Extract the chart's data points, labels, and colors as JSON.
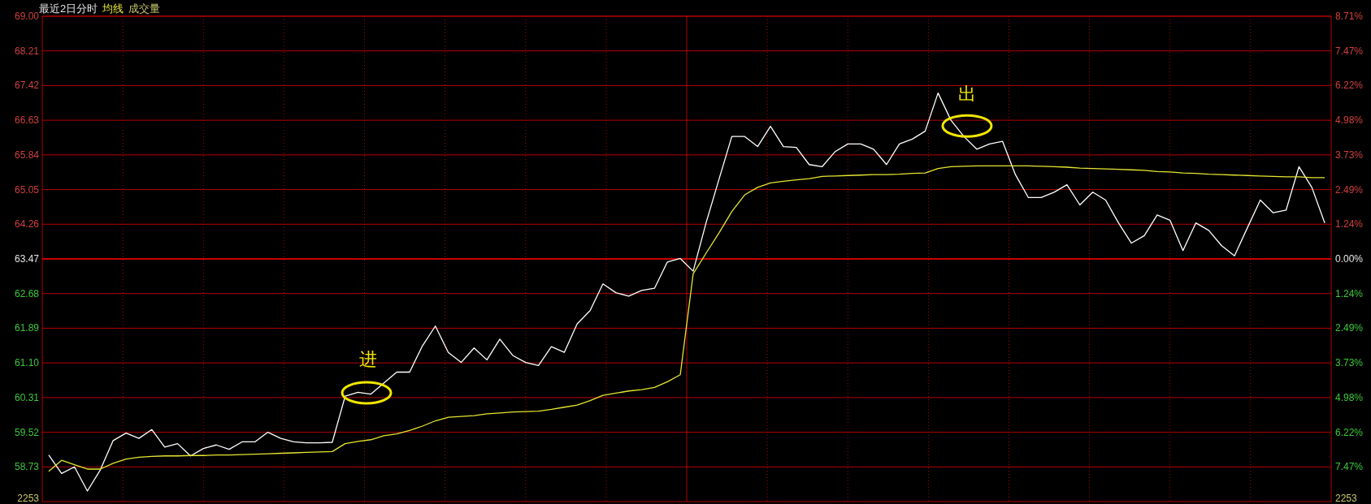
{
  "chart_data": {
    "type": "line",
    "title": "最近2日分时",
    "categories": [
      null,
      null,
      null,
      null,
      null,
      null,
      null,
      null,
      null,
      null,
      null,
      null,
      null,
      null,
      null,
      null,
      null,
      null,
      null,
      null,
      null,
      null,
      null,
      null,
      null,
      null,
      null,
      null,
      null,
      null,
      null,
      null,
      null,
      null,
      null,
      null,
      null,
      null,
      null,
      null,
      null,
      null,
      null,
      null,
      null,
      null,
      null,
      null,
      null,
      null,
      null,
      null,
      null,
      null,
      null,
      null,
      null,
      null,
      null,
      null,
      null,
      null,
      null,
      null,
      null,
      null,
      null,
      null,
      null,
      null,
      null,
      null,
      null,
      null,
      null,
      null,
      null,
      null,
      null,
      null,
      null,
      null,
      null,
      null,
      null,
      null,
      null,
      null,
      null,
      null,
      null,
      null,
      null,
      null,
      null,
      null,
      null,
      null,
      null,
      null
    ],
    "series": [
      {
        "color": "#ffffff",
        "values": [
          59.0,
          58.58,
          58.73,
          58.18,
          58.66,
          59.33,
          59.5,
          59.38,
          59.58,
          59.18,
          59.26,
          58.98,
          59.15,
          59.23,
          59.13,
          59.3,
          59.3,
          59.52,
          59.38,
          59.3,
          59.28,
          59.28,
          59.29,
          60.34,
          60.43,
          60.39,
          60.64,
          60.89,
          60.89,
          61.49,
          61.94,
          61.34,
          61.11,
          61.44,
          61.17,
          61.64,
          61.27,
          61.11,
          61.04,
          61.47,
          61.34,
          61.99,
          62.29,
          62.9,
          62.7,
          62.62,
          62.75,
          62.8,
          63.4,
          63.48,
          63.19,
          64.29,
          65.28,
          66.26,
          66.26,
          66.03,
          66.49,
          66.03,
          66.01,
          65.62,
          65.57,
          65.91,
          66.09,
          66.09,
          65.97,
          65.62,
          66.09,
          66.2,
          66.38,
          67.25,
          66.63,
          66.26,
          65.97,
          66.09,
          66.15,
          65.39,
          64.87,
          64.87,
          64.99,
          65.16,
          64.7,
          64.99,
          64.81,
          64.29,
          63.83,
          64.0,
          64.47,
          64.35,
          63.66,
          64.29,
          64.12,
          63.77,
          63.54,
          64.18,
          64.81,
          64.52,
          64.58,
          65.57,
          65.1,
          64.29
        ]
      },
      {
        "name": "均线",
        "color": "#e6e632",
        "values": [
          58.63,
          58.88,
          58.78,
          58.68,
          58.68,
          58.81,
          58.91,
          58.95,
          58.97,
          58.98,
          58.98,
          58.99,
          58.99,
          59.0,
          59.0,
          59.01,
          59.02,
          59.03,
          59.04,
          59.05,
          59.06,
          59.07,
          59.08,
          59.26,
          59.31,
          59.35,
          59.44,
          59.48,
          59.56,
          59.66,
          59.78,
          59.86,
          59.88,
          59.9,
          59.94,
          59.96,
          59.98,
          59.99,
          60.0,
          60.04,
          60.09,
          60.14,
          60.24,
          60.36,
          60.41,
          60.46,
          60.49,
          60.54,
          60.67,
          60.83,
          63.13,
          63.6,
          64.06,
          64.55,
          64.93,
          65.1,
          65.2,
          65.24,
          65.27,
          65.3,
          65.35,
          65.36,
          65.37,
          65.38,
          65.39,
          65.39,
          65.4,
          65.42,
          65.43,
          65.53,
          65.57,
          65.58,
          65.59,
          65.59,
          65.59,
          65.59,
          65.59,
          65.58,
          65.57,
          65.56,
          65.54,
          65.53,
          65.52,
          65.51,
          65.5,
          65.49,
          65.46,
          65.45,
          65.43,
          65.42,
          65.4,
          65.39,
          65.38,
          65.37,
          65.36,
          65.35,
          65.34,
          65.34,
          65.32,
          65.32
        ]
      }
    ],
    "ylim": [
      57.94,
      69.0
    ],
    "yticks": [
      {
        "value": 69.0,
        "label": "69.00"
      },
      {
        "value": 68.21,
        "label": "68.21"
      },
      {
        "value": 67.42,
        "label": "67.42"
      },
      {
        "value": 66.63,
        "label": "66.63"
      },
      {
        "value": 65.84,
        "label": "65.84"
      },
      {
        "value": 65.05,
        "label": "65.05"
      },
      {
        "value": 64.26,
        "label": "64.26"
      },
      {
        "value": 63.47,
        "label": "63.47"
      },
      {
        "value": 62.68,
        "label": "62.68"
      },
      {
        "value": 61.89,
        "label": "61.89"
      },
      {
        "value": 61.1,
        "label": "61.10"
      },
      {
        "value": 60.31,
        "label": "60.31"
      },
      {
        "value": 59.52,
        "label": "59.52"
      },
      {
        "value": 58.73,
        "label": "58.73"
      }
    ],
    "y2lim": [
      -8.71,
      8.71
    ],
    "y2ticks": [
      {
        "value": 8.71,
        "label": "8.71%"
      },
      {
        "value": 7.47,
        "label": "7.47%"
      },
      {
        "value": 6.22,
        "label": "6.22%"
      },
      {
        "value": 4.98,
        "label": "4.98%"
      },
      {
        "value": 3.73,
        "label": "3.73%"
      },
      {
        "value": 2.49,
        "label": "2.49%"
      },
      {
        "value": 1.24,
        "label": "1.24%"
      },
      {
        "value": 0,
        "label": "0.00%"
      },
      {
        "value": -1.24,
        "label": "1.24%"
      },
      {
        "value": -2.49,
        "label": "2.49%"
      },
      {
        "value": -3.73,
        "label": "3.73%"
      },
      {
        "value": -4.98,
        "label": "4.98%"
      },
      {
        "value": -6.22,
        "label": "6.22%"
      },
      {
        "value": -7.47,
        "label": "7.47%"
      }
    ],
    "ref_lines": [
      {
        "axis": "y",
        "value": 63.47,
        "color": "#c80000"
      }
    ],
    "annotations": [
      "成交量",
      "2253",
      "进",
      "出"
    ],
    "grid": true,
    "legend": "top left",
    "line_style": "solid",
    "marker": "none"
  }
}
